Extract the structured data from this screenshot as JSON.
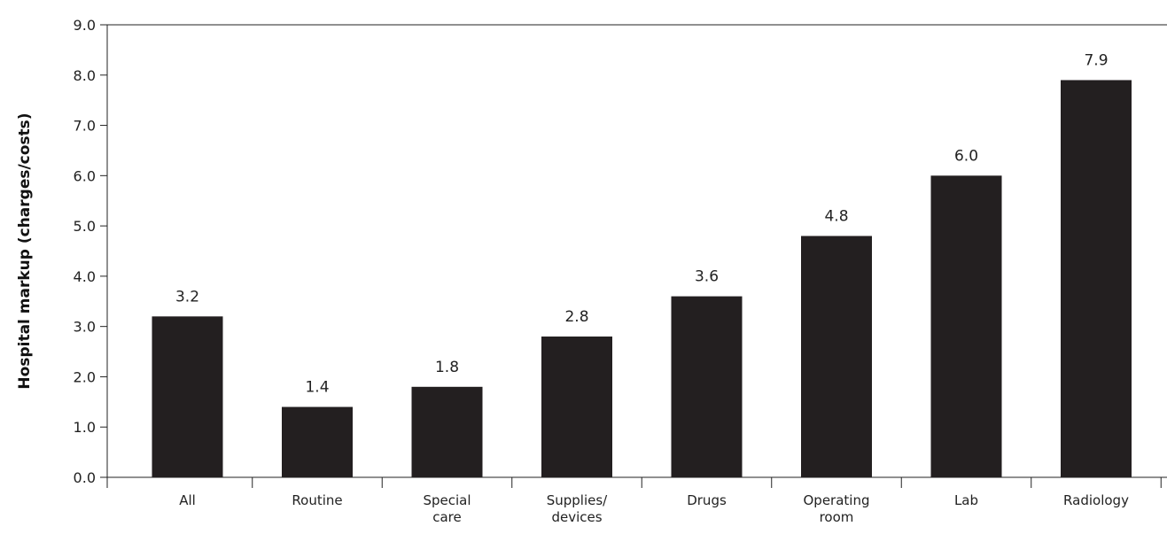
{
  "chart_data": {
    "type": "bar",
    "title": "",
    "xlabel": "",
    "ylabel": "Hospital markup (charges/costs)",
    "categories": [
      [
        "All"
      ],
      [
        "Routine"
      ],
      [
        "Special",
        "care"
      ],
      [
        "Supplies/",
        "devices"
      ],
      [
        "Drugs"
      ],
      [
        "Operating",
        "room"
      ],
      [
        "Lab"
      ],
      [
        "Radiology"
      ]
    ],
    "values": [
      3.2,
      1.4,
      1.8,
      2.8,
      3.6,
      4.8,
      6.0,
      7.9
    ],
    "value_labels": [
      "3.2",
      "1.4",
      "1.8",
      "2.8",
      "3.6",
      "4.8",
      "6.0",
      "7.9"
    ],
    "ylim": [
      0,
      9
    ],
    "yticks": [
      "0.0",
      "1.0",
      "2.0",
      "3.0",
      "4.0",
      "5.0",
      "6.0",
      "7.0",
      "8.0",
      "9.0"
    ],
    "grid": false,
    "legend": "none",
    "bar_color": "#231f20",
    "axis_color": "#222222"
  }
}
